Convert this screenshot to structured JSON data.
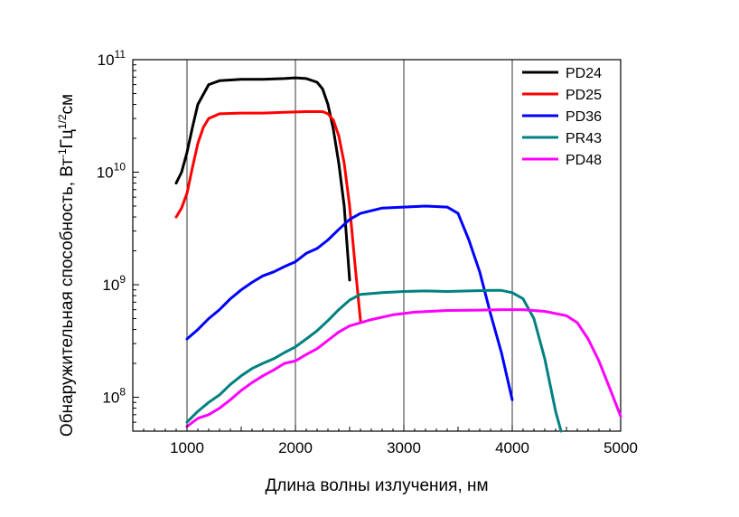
{
  "chart_data": {
    "type": "line",
    "xlabel": "Длина волны излучения, нм",
    "ylabel": {
      "main": "Обнаружительная способность, Вт",
      "sup1": "-1",
      "mid": "Гц",
      "sup2": "1/2",
      "end": "см"
    },
    "xlim": [
      500,
      5000
    ],
    "ylim": [
      50000000.0,
      100000000000.0
    ],
    "yscale": "log",
    "xticks": [
      1000,
      2000,
      3000,
      4000,
      5000
    ],
    "yticks": [
      {
        "value": 100000000.0,
        "base": "10",
        "exp": "8"
      },
      {
        "value": 1000000000.0,
        "base": "10",
        "exp": "9"
      },
      {
        "value": 10000000000.0,
        "base": "10",
        "exp": "10"
      },
      {
        "value": 100000000000.0,
        "base": "10",
        "exp": "11"
      }
    ],
    "vertical_gridlines": [
      1000,
      2000,
      3000,
      4000,
      5000
    ],
    "legend_position": "top-right",
    "series": [
      {
        "name": "PD24",
        "color": "#000000",
        "points": [
          [
            900,
            8000000000.0
          ],
          [
            950,
            10000000000.0
          ],
          [
            1000,
            15000000000.0
          ],
          [
            1050,
            25000000000.0
          ],
          [
            1100,
            40000000000.0
          ],
          [
            1200,
            60000000000.0
          ],
          [
            1300,
            65000000000.0
          ],
          [
            1500,
            67000000000.0
          ],
          [
            1700,
            67000000000.0
          ],
          [
            1900,
            68000000000.0
          ],
          [
            2000,
            69000000000.0
          ],
          [
            2100,
            68000000000.0
          ],
          [
            2200,
            63000000000.0
          ],
          [
            2250,
            55000000000.0
          ],
          [
            2300,
            40000000000.0
          ],
          [
            2350,
            24000000000.0
          ],
          [
            2400,
            12000000000.0
          ],
          [
            2450,
            5000000000.0
          ],
          [
            2500,
            1100000000.0
          ]
        ]
      },
      {
        "name": "PD25",
        "color": "#ff0000",
        "points": [
          [
            900,
            4000000000.0
          ],
          [
            950,
            4800000000.0
          ],
          [
            1000,
            6500000000.0
          ],
          [
            1050,
            11000000000.0
          ],
          [
            1100,
            18000000000.0
          ],
          [
            1150,
            25000000000.0
          ],
          [
            1200,
            30000000000.0
          ],
          [
            1300,
            33000000000.0
          ],
          [
            1500,
            33500000000.0
          ],
          [
            1700,
            33500000000.0
          ],
          [
            1900,
            34000000000.0
          ],
          [
            2100,
            34500000000.0
          ],
          [
            2250,
            34500000000.0
          ],
          [
            2300,
            33000000000.0
          ],
          [
            2350,
            29000000000.0
          ],
          [
            2400,
            21000000000.0
          ],
          [
            2450,
            12000000000.0
          ],
          [
            2500,
            5000000000.0
          ],
          [
            2550,
            1500000000.0
          ],
          [
            2600,
            480000000.0
          ]
        ]
      },
      {
        "name": "PD36",
        "color": "#0000ff",
        "points": [
          [
            1000,
            330000000.0
          ],
          [
            1100,
            400000000.0
          ],
          [
            1200,
            500000000.0
          ],
          [
            1300,
            600000000.0
          ],
          [
            1400,
            750000000.0
          ],
          [
            1500,
            900000000.0
          ],
          [
            1600,
            1050000000.0
          ],
          [
            1700,
            1200000000.0
          ],
          [
            1800,
            1300000000.0
          ],
          [
            1900,
            1450000000.0
          ],
          [
            2000,
            1600000000.0
          ],
          [
            2100,
            1900000000.0
          ],
          [
            2200,
            2100000000.0
          ],
          [
            2300,
            2500000000.0
          ],
          [
            2400,
            3100000000.0
          ],
          [
            2500,
            3800000000.0
          ],
          [
            2600,
            4300000000.0
          ],
          [
            2800,
            4800000000.0
          ],
          [
            3000,
            4900000000.0
          ],
          [
            3200,
            5000000000.0
          ],
          [
            3400,
            4900000000.0
          ],
          [
            3500,
            4300000000.0
          ],
          [
            3600,
            2500000000.0
          ],
          [
            3700,
            1300000000.0
          ],
          [
            3800,
            550000000.0
          ],
          [
            3900,
            250000000.0
          ],
          [
            4000,
            95000000.0
          ]
        ]
      },
      {
        "name": "PR43",
        "color": "#008080",
        "points": [
          [
            1000,
            60000000.0
          ],
          [
            1100,
            75000000.0
          ],
          [
            1200,
            90000000.0
          ],
          [
            1300,
            105000000.0
          ],
          [
            1400,
            130000000.0
          ],
          [
            1500,
            155000000.0
          ],
          [
            1600,
            180000000.0
          ],
          [
            1700,
            200000000.0
          ],
          [
            1800,
            220000000.0
          ],
          [
            1900,
            250000000.0
          ],
          [
            2000,
            280000000.0
          ],
          [
            2100,
            330000000.0
          ],
          [
            2200,
            390000000.0
          ],
          [
            2300,
            480000000.0
          ],
          [
            2400,
            600000000.0
          ],
          [
            2500,
            730000000.0
          ],
          [
            2600,
            820000000.0
          ],
          [
            2800,
            850000000.0
          ],
          [
            3000,
            870000000.0
          ],
          [
            3200,
            880000000.0
          ],
          [
            3400,
            870000000.0
          ],
          [
            3600,
            880000000.0
          ],
          [
            3800,
            890000000.0
          ],
          [
            3900,
            890000000.0
          ],
          [
            4000,
            850000000.0
          ],
          [
            4100,
            750000000.0
          ],
          [
            4200,
            500000000.0
          ],
          [
            4300,
            220000000.0
          ],
          [
            4400,
            75000000.0
          ],
          [
            4450,
            50000000.0
          ]
        ]
      },
      {
        "name": "PD48",
        "color": "#ff00ff",
        "points": [
          [
            1000,
            55000000.0
          ],
          [
            1100,
            65000000.0
          ],
          [
            1200,
            70000000.0
          ],
          [
            1300,
            80000000.0
          ],
          [
            1400,
            95000000.0
          ],
          [
            1500,
            115000000.0
          ],
          [
            1600,
            135000000.0
          ],
          [
            1700,
            155000000.0
          ],
          [
            1800,
            175000000.0
          ],
          [
            1900,
            200000000.0
          ],
          [
            2000,
            210000000.0
          ],
          [
            2100,
            240000000.0
          ],
          [
            2200,
            270000000.0
          ],
          [
            2300,
            320000000.0
          ],
          [
            2400,
            380000000.0
          ],
          [
            2500,
            430000000.0
          ],
          [
            2700,
            490000000.0
          ],
          [
            2900,
            540000000.0
          ],
          [
            3100,
            570000000.0
          ],
          [
            3400,
            590000000.0
          ],
          [
            3700,
            595000000.0
          ],
          [
            3900,
            600000000.0
          ],
          [
            4100,
            600000000.0
          ],
          [
            4300,
            580000000.0
          ],
          [
            4500,
            530000000.0
          ],
          [
            4600,
            460000000.0
          ],
          [
            4700,
            330000000.0
          ],
          [
            4800,
            210000000.0
          ],
          [
            4900,
            120000000.0
          ],
          [
            5000,
            68000000.0
          ]
        ]
      }
    ]
  }
}
